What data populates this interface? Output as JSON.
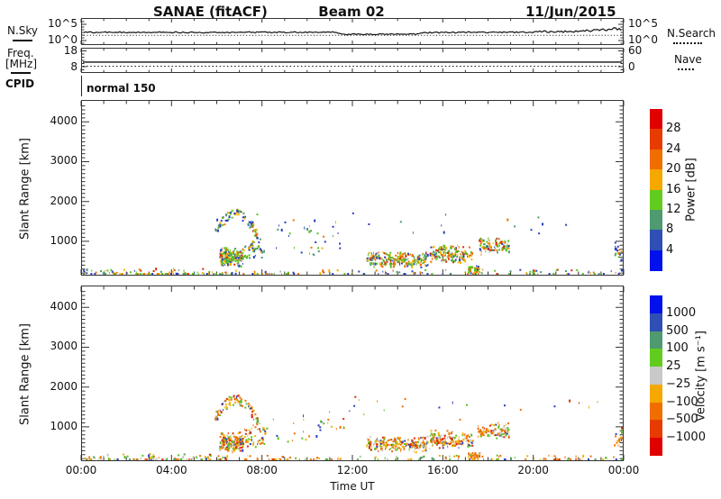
{
  "header": {
    "station": "SANAE (fitACF)",
    "beam": "Beam 02",
    "date": "11/Jun/2015"
  },
  "top_panels": {
    "noise": {
      "left_label": "N.Sky",
      "right_label": "N.Search",
      "ticks_left": [
        "10^5",
        "10^0"
      ],
      "ticks_right": [
        "10^5",
        "10^0"
      ]
    },
    "freq": {
      "left_label_line1": "Freq.",
      "left_label_line2": "[MHz]",
      "right_label": "Nave",
      "ticks_left": [
        "18",
        "8"
      ],
      "ticks_right": [
        "60",
        "0"
      ]
    },
    "cpid": {
      "label": "CPID",
      "value": "normal 150"
    }
  },
  "axes": {
    "x_ticks": [
      "00:00",
      "04:00",
      "08:00",
      "12:00",
      "16:00",
      "20:00",
      "00:00"
    ],
    "x_label": "Time UT",
    "y_label": "Slant Range [km]",
    "y_tick_labels": [
      "1000",
      "2000",
      "3000",
      "4000"
    ]
  },
  "colorbars": {
    "power": {
      "title": "Power [dB]",
      "labels": [
        "28",
        "24",
        "20",
        "16",
        "12",
        "8",
        "4"
      ],
      "colors": [
        "#e00000",
        "#e83b00",
        "#f06e00",
        "#f5a800",
        "#62cc1e",
        "#4f9a6e",
        "#2f4fb5",
        "#0011ee"
      ]
    },
    "velocity": {
      "title": "Velocity [m s⁻¹]",
      "labels": [
        "1000",
        "500",
        "100",
        "25",
        "−25",
        "−100",
        "−500",
        "−1000"
      ],
      "colors": [
        "#0011ee",
        "#2f4fb5",
        "#4f9a6e",
        "#62cc1e",
        "#c9c9c9",
        "#f5a800",
        "#f06e00",
        "#e83b00",
        "#e00000"
      ]
    }
  },
  "chart_data": {
    "type": "scatter",
    "subtype": "superdarn-range-time-intensity",
    "title": "SANAE (fitACF)  Beam 02  11/Jun/2015",
    "x": {
      "label": "Time UT",
      "range_hours": [
        0,
        24
      ],
      "major_tick_hours": 4,
      "minor_tick_hours": 1,
      "tick_labels": [
        "00:00",
        "04:00",
        "08:00",
        "12:00",
        "16:00",
        "20:00",
        "00:00"
      ]
    },
    "y": {
      "label": "Slant Range [km]",
      "range_km": [
        160,
        4590
      ],
      "ticks_km": [
        1000,
        2000,
        3000,
        4000
      ],
      "minor_step_km": 100
    },
    "noise_panel": {
      "y_scale": "log",
      "tick_values": [
        "10^5",
        "10^0"
      ],
      "sky_noise_line_fraction_points": [
        [
          0,
          0.53
        ],
        [
          11.2,
          0.53
        ],
        [
          11.5,
          0.6
        ],
        [
          14.9,
          0.6
        ],
        [
          15.2,
          0.54
        ],
        [
          20.5,
          0.52
        ],
        [
          22.0,
          0.48
        ],
        [
          23.0,
          0.45
        ],
        [
          23.5,
          0.4
        ],
        [
          24,
          0.42
        ]
      ],
      "search_noise_dotted_fraction": 0.64
    },
    "freq_panel": {
      "freq_mhz_approx": 11,
      "freq_line_fraction": 0.57,
      "nave_dotted_fraction": 0.73,
      "ticks_left": [
        18,
        8
      ],
      "ticks_right": [
        60,
        0
      ]
    },
    "cpid_mode": "normal 150",
    "palettes": {
      "p_floor": [
        [
          "#2b3fbf",
          28
        ],
        [
          "#59c122",
          22
        ],
        [
          "#4f9a6e",
          14
        ],
        [
          "#f2b300",
          14
        ],
        [
          "#ef7100",
          14
        ],
        [
          "#e02800",
          8
        ]
      ],
      "v_floor": [
        [
          "#ef7100",
          25
        ],
        [
          "#f2b300",
          20
        ],
        [
          "#59c122",
          20
        ],
        [
          "#4f9a6e",
          12
        ],
        [
          "#c9c9c9",
          8
        ],
        [
          "#2b3fbf",
          8
        ],
        [
          "#e02800",
          7
        ]
      ],
      "p_arc": [
        [
          "#2b3fbf",
          34
        ],
        [
          "#4f9a6e",
          22
        ],
        [
          "#59c122",
          22
        ],
        [
          "#f2b300",
          12
        ],
        [
          "#ef7100",
          6
        ],
        [
          "#e02800",
          4
        ]
      ],
      "v_arc": [
        [
          "#ef7100",
          30
        ],
        [
          "#e02800",
          14
        ],
        [
          "#59c122",
          20
        ],
        [
          "#4f9a6e",
          12
        ],
        [
          "#f2b300",
          14
        ],
        [
          "#2b3fbf",
          10
        ]
      ],
      "p_dense": [
        [
          "#59c122",
          34
        ],
        [
          "#f2b300",
          16
        ],
        [
          "#ef7100",
          18
        ],
        [
          "#2b3fbf",
          12
        ],
        [
          "#4f9a6e",
          10
        ],
        [
          "#e02800",
          10
        ]
      ],
      "v_dense": [
        [
          "#ef7100",
          30
        ],
        [
          "#f2b300",
          22
        ],
        [
          "#c9c9c9",
          16
        ],
        [
          "#59c122",
          14
        ],
        [
          "#e02800",
          8
        ],
        [
          "#2b3fbf",
          10
        ]
      ],
      "p_dense2": [
        [
          "#59c122",
          26
        ],
        [
          "#ef7100",
          24
        ],
        [
          "#f2b300",
          16
        ],
        [
          "#e02800",
          14
        ],
        [
          "#2b3fbf",
          12
        ],
        [
          "#4f9a6e",
          8
        ]
      ],
      "v_dense2": [
        [
          "#ef7100",
          34
        ],
        [
          "#f2b300",
          20
        ],
        [
          "#c9c9c9",
          10
        ],
        [
          "#59c122",
          14
        ],
        [
          "#e02800",
          12
        ],
        [
          "#2b3fbf",
          10
        ]
      ],
      "p_sparse": [
        [
          "#2b3fbf",
          45
        ],
        [
          "#4f9a6e",
          20
        ],
        [
          "#59c122",
          20
        ],
        [
          "#f2b300",
          10
        ],
        [
          "#ef7100",
          5
        ]
      ],
      "v_sparse": [
        [
          "#ef7100",
          30
        ],
        [
          "#59c122",
          25
        ],
        [
          "#f2b300",
          20
        ],
        [
          "#2b3fbf",
          15
        ],
        [
          "#e02800",
          10
        ]
      ],
      "p_blob": [
        [
          "#59c122",
          45
        ],
        [
          "#ef7100",
          25
        ],
        [
          "#f2b300",
          15
        ],
        [
          "#2b3fbf",
          10
        ],
        [
          "#e02800",
          5
        ]
      ],
      "v_blob": [
        [
          "#ef7100",
          50
        ],
        [
          "#f2b300",
          20
        ],
        [
          "#e02800",
          12
        ],
        [
          "#59c122",
          10
        ],
        [
          "#c9c9c9",
          8
        ]
      ]
    },
    "clusters": [
      {
        "shape": "floor",
        "t": [
          0,
          6.5
        ],
        "r": [
          160,
          340
        ],
        "n": 95,
        "pal": [
          "p_floor",
          "v_floor"
        ]
      },
      {
        "shape": "floor",
        "t": [
          6.5,
          24
        ],
        "r": [
          160,
          310
        ],
        "n": 120,
        "pal": [
          "p_floor",
          "v_floor"
        ]
      },
      {
        "shape": "arc",
        "t": [
          5.9,
          7.9
        ],
        "r": [
          1000,
          1700
        ],
        "n": 90,
        "pal": [
          "p_arc",
          "v_arc"
        ]
      },
      {
        "shape": "band",
        "t": [
          6.1,
          7.15
        ],
        "r": [
          380,
          900
        ],
        "n": 175,
        "pal": [
          "p_dense",
          "v_dense2"
        ]
      },
      {
        "shape": "band",
        "t": [
          7.2,
          8.2
        ],
        "r": [
          500,
          1100
        ],
        "n": 45,
        "pal": [
          "p_sparse",
          "v_sparse"
        ]
      },
      {
        "shape": "band",
        "t": [
          8.6,
          11.6
        ],
        "r": [
          500,
          1500
        ],
        "n": 28,
        "pal": [
          "p_sparse",
          "v_sparse"
        ]
      },
      {
        "shape": "band",
        "t": [
          12.6,
          15.3
        ],
        "r": [
          350,
          780
        ],
        "n": 215,
        "pal": [
          "p_dense",
          "v_dense"
        ]
      },
      {
        "shape": "band",
        "t": [
          15.4,
          17.3
        ],
        "r": [
          450,
          950
        ],
        "n": 150,
        "pal": [
          "p_dense2",
          "v_dense2"
        ]
      },
      {
        "shape": "band",
        "t": [
          17.5,
          18.9
        ],
        "r": [
          650,
          1150
        ],
        "n": 95,
        "pal": [
          "p_dense2",
          "v_dense2"
        ]
      },
      {
        "shape": "band",
        "t": [
          17.1,
          17.6
        ],
        "r": [
          160,
          430
        ],
        "n": 45,
        "pal": [
          "p_blob",
          "v_blob"
        ]
      },
      {
        "shape": "band",
        "t": [
          5,
          23
        ],
        "r": [
          1100,
          1900
        ],
        "n": 22,
        "pal": [
          "p_sparse",
          "v_sparse"
        ]
      },
      {
        "shape": "band",
        "t": [
          23.55,
          23.95
        ],
        "r": [
          500,
          1050
        ],
        "n": 18,
        "pal": [
          "p_sparse",
          "v_sparse"
        ]
      }
    ],
    "panels": [
      {
        "name": "power",
        "colorbar_boundaries_db": [
          4,
          8,
          12,
          16,
          20,
          24,
          28
        ]
      },
      {
        "name": "velocity",
        "colorbar_boundaries_ms": [
          -1000,
          -500,
          -100,
          -25,
          25,
          100,
          500,
          1000
        ]
      }
    ]
  }
}
